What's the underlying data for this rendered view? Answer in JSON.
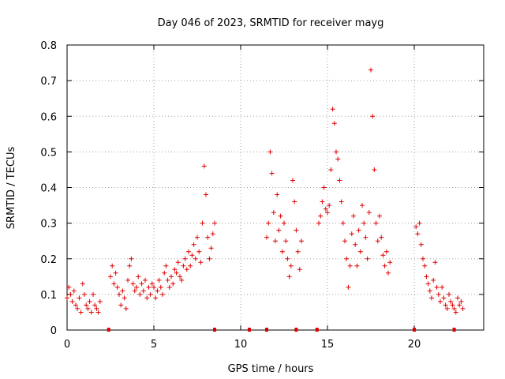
{
  "chart_data": {
    "type": "scatter",
    "title": "Day 046 of 2023, SRMTID for receiver mayg",
    "xlabel": "GPS time / hours",
    "ylabel": "SRMTID / TECUs",
    "xlim": [
      0,
      24
    ],
    "ylim": [
      0,
      0.8
    ],
    "xticks": [
      0,
      5,
      10,
      15,
      20
    ],
    "xtick_labels": [
      "0",
      "5",
      "10",
      "15",
      "20"
    ],
    "yticks": [
      0,
      0.1,
      0.2,
      0.3,
      0.4,
      0.5,
      0.6,
      0.7,
      0.8
    ],
    "ytick_labels": [
      "0",
      "0.1",
      "0.2",
      "0.3",
      "0.4",
      "0.5",
      "0.6",
      "0.7",
      "0.8"
    ],
    "grid": true,
    "marker": "plus",
    "color": "#e00000",
    "series": [
      {
        "name": "SRMTID",
        "x": [
          0.0,
          0.1,
          0.2,
          0.3,
          0.4,
          0.5,
          0.6,
          0.7,
          0.8,
          0.9,
          1.0,
          1.1,
          1.2,
          1.3,
          1.4,
          1.5,
          1.6,
          1.7,
          1.8,
          1.9,
          2.5,
          2.6,
          2.7,
          2.8,
          2.9,
          3.0,
          3.1,
          3.2,
          3.3,
          3.4,
          3.5,
          3.6,
          3.7,
          3.8,
          3.9,
          4.0,
          4.1,
          4.2,
          4.3,
          4.4,
          4.5,
          4.6,
          4.7,
          4.8,
          4.9,
          5.0,
          5.1,
          5.2,
          5.3,
          5.4,
          5.5,
          5.6,
          5.7,
          5.8,
          5.9,
          6.0,
          6.1,
          6.2,
          6.3,
          6.4,
          6.5,
          6.6,
          6.7,
          6.8,
          6.9,
          7.0,
          7.1,
          7.2,
          7.3,
          7.4,
          7.5,
          7.6,
          7.7,
          7.8,
          7.9,
          8.0,
          8.1,
          8.2,
          8.3,
          8.4,
          8.5,
          11.5,
          11.6,
          11.7,
          11.8,
          11.9,
          12.0,
          12.1,
          12.2,
          12.3,
          12.4,
          12.5,
          12.6,
          12.7,
          12.8,
          12.9,
          13.0,
          13.1,
          13.2,
          13.3,
          13.4,
          13.5,
          14.5,
          14.6,
          14.7,
          14.8,
          14.9,
          15.0,
          15.1,
          15.2,
          15.3,
          15.4,
          15.5,
          15.6,
          15.7,
          15.8,
          15.9,
          16.0,
          16.1,
          16.2,
          16.3,
          16.4,
          16.5,
          16.6,
          16.7,
          16.8,
          16.9,
          17.0,
          17.1,
          17.2,
          17.3,
          17.4,
          17.5,
          17.6,
          17.7,
          17.8,
          17.9,
          18.0,
          18.1,
          18.2,
          18.3,
          18.4,
          18.5,
          18.6,
          20.1,
          20.2,
          20.3,
          20.4,
          20.5,
          20.6,
          20.7,
          20.8,
          20.9,
          21.0,
          21.1,
          21.2,
          21.3,
          21.4,
          21.5,
          21.6,
          21.7,
          21.8,
          21.9,
          22.0,
          22.1,
          22.2,
          22.3,
          22.4,
          22.5,
          22.6,
          22.7,
          22.8
        ],
        "y": [
          0.09,
          0.12,
          0.1,
          0.08,
          0.11,
          0.07,
          0.06,
          0.09,
          0.05,
          0.13,
          0.1,
          0.07,
          0.06,
          0.08,
          0.05,
          0.1,
          0.07,
          0.06,
          0.05,
          0.08,
          0.15,
          0.18,
          0.13,
          0.16,
          0.12,
          0.1,
          0.07,
          0.11,
          0.09,
          0.06,
          0.14,
          0.18,
          0.2,
          0.13,
          0.11,
          0.12,
          0.15,
          0.1,
          0.13,
          0.11,
          0.14,
          0.09,
          0.12,
          0.1,
          0.13,
          0.12,
          0.09,
          0.11,
          0.14,
          0.12,
          0.1,
          0.16,
          0.18,
          0.14,
          0.12,
          0.15,
          0.13,
          0.17,
          0.16,
          0.19,
          0.15,
          0.14,
          0.18,
          0.2,
          0.17,
          0.22,
          0.18,
          0.21,
          0.24,
          0.2,
          0.26,
          0.22,
          0.19,
          0.3,
          0.46,
          0.38,
          0.26,
          0.2,
          0.23,
          0.27,
          0.3,
          0.26,
          0.3,
          0.5,
          0.44,
          0.33,
          0.25,
          0.38,
          0.28,
          0.32,
          0.22,
          0.3,
          0.25,
          0.2,
          0.15,
          0.18,
          0.42,
          0.36,
          0.28,
          0.22,
          0.17,
          0.25,
          0.3,
          0.32,
          0.36,
          0.4,
          0.34,
          0.33,
          0.35,
          0.45,
          0.62,
          0.58,
          0.5,
          0.48,
          0.42,
          0.36,
          0.3,
          0.25,
          0.2,
          0.12,
          0.18,
          0.27,
          0.32,
          0.24,
          0.18,
          0.28,
          0.22,
          0.35,
          0.3,
          0.26,
          0.2,
          0.33,
          0.73,
          0.6,
          0.45,
          0.3,
          0.25,
          0.32,
          0.26,
          0.21,
          0.18,
          0.22,
          0.16,
          0.19,
          0.29,
          0.27,
          0.3,
          0.24,
          0.2,
          0.18,
          0.15,
          0.13,
          0.11,
          0.09,
          0.14,
          0.19,
          0.12,
          0.1,
          0.08,
          0.12,
          0.09,
          0.07,
          0.06,
          0.1,
          0.08,
          0.07,
          0.06,
          0.05,
          0.09,
          0.07,
          0.08,
          0.06
        ]
      }
    ],
    "gap_markers": [
      2.4,
      8.5,
      10.5,
      11.5,
      13.2,
      14.4,
      20.0,
      22.3
    ]
  }
}
